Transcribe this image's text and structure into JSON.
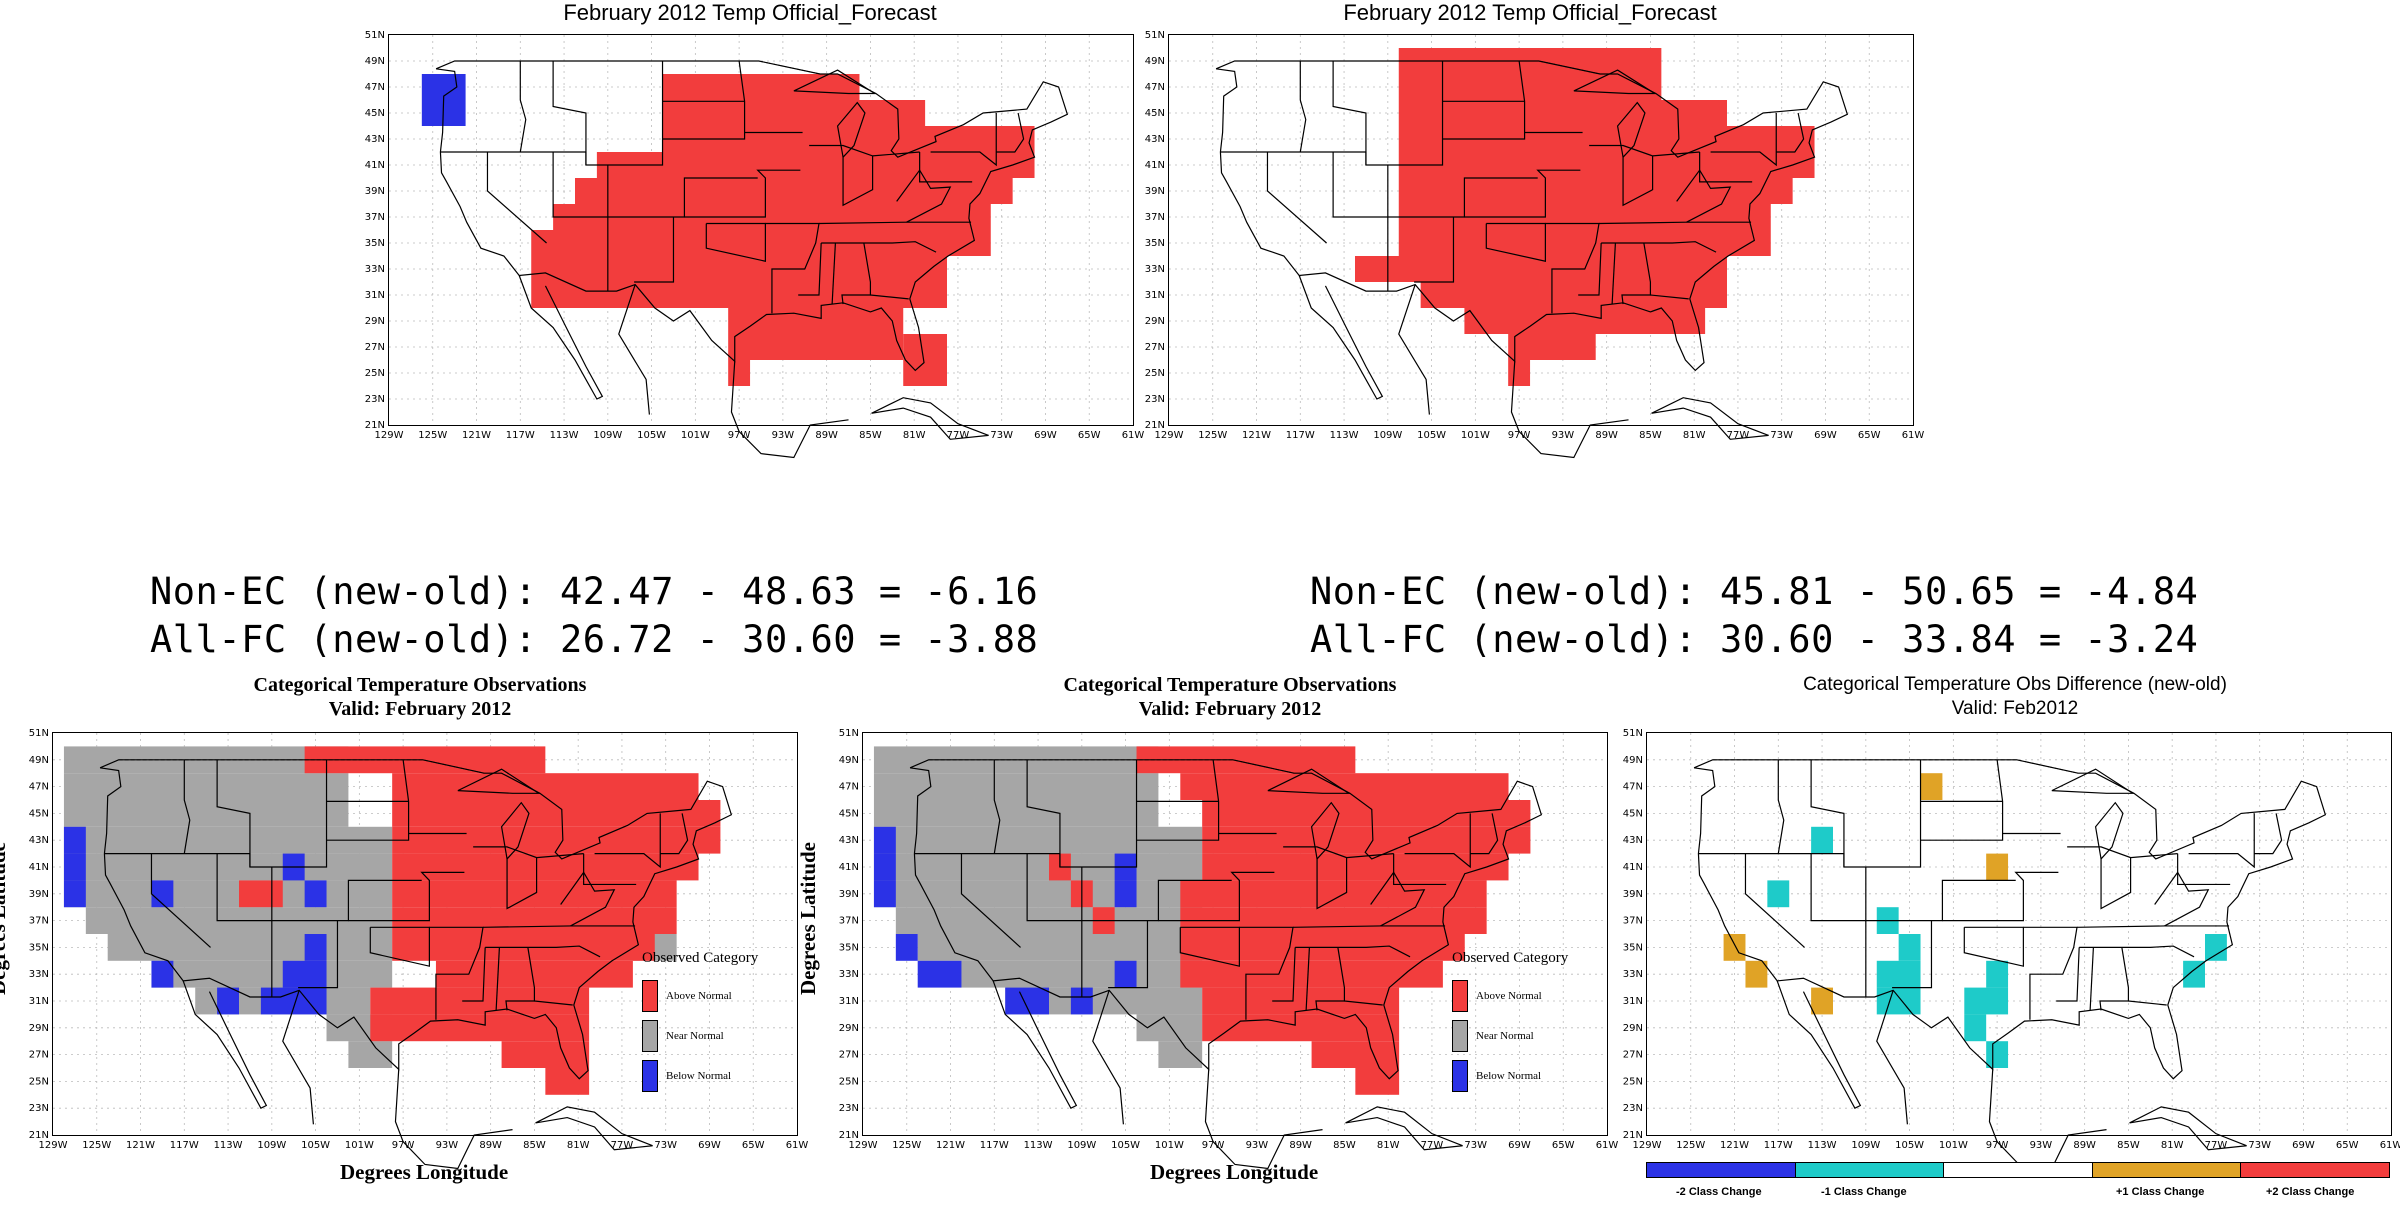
{
  "colors": {
    "above": "#f23d3d",
    "near": "#a6a6a6",
    "below": "#2b32e6",
    "minus2": "#2b32e6",
    "minus1": "#1ecbc9",
    "zero": "#ffffff",
    "plus1": "#e0a326",
    "plus2": "#f23d3d"
  },
  "axes": {
    "lon_ticks": [
      "129W",
      "125W",
      "121W",
      "117W",
      "113W",
      "109W",
      "105W",
      "101W",
      "97W",
      "93W",
      "89W",
      "85W",
      "81W",
      "77W",
      "73W",
      "69W",
      "65W",
      "61W"
    ],
    "lat_ticks": [
      "21N",
      "23N",
      "25N",
      "27N",
      "29N",
      "31N",
      "33N",
      "35N",
      "37N",
      "39N",
      "41N",
      "43N",
      "45N",
      "47N",
      "49N",
      "51N"
    ],
    "lon_range": [
      -129,
      -61
    ],
    "lat_range": [
      21,
      51
    ]
  },
  "panels": [
    {
      "id": "forecast-old",
      "title": "February 2012 Temp Official_Forecast",
      "subtitle": "",
      "show_axis_titles": false,
      "cells": [
        {
          "row": [
            47,
            49,
            45
          ],
          "lon": [
            -125,
            -122
          ],
          "cls": "below"
        },
        {
          "row": [
            47,
            47,
            45
          ],
          "lon": [
            -125,
            -122
          ],
          "cls": "below"
        },
        {
          "row": [
            45,
            45,
            45
          ],
          "lon": [
            -125,
            -122
          ],
          "cls": "below"
        }
      ]
    },
    {
      "id": "forecast-new",
      "title": "February 2012 Temp Official_Forecast",
      "subtitle": "",
      "show_axis_titles": false
    },
    {
      "id": "obs-old",
      "title": "Categorical Temperature Observations",
      "subtitle": "Valid: February 2012",
      "show_axis_titles": true
    },
    {
      "id": "obs-new",
      "title": "Categorical Temperature Observations",
      "subtitle": "Valid: February 2012",
      "show_axis_titles": true
    },
    {
      "id": "obs-diff",
      "title": "Categorical Temperature Obs Difference (new-old)",
      "subtitle": "Valid: Feb2012",
      "show_axis_titles": false
    }
  ],
  "scores": {
    "left": {
      "non_ec": "Non-EC (new-old): 42.47 - 48.63 = -6.16",
      "all_fc": "All-FC (new-old): 26.72 - 30.60 = -3.88"
    },
    "right": {
      "non_ec": "Non-EC (new-old): 45.81 - 50.65 = -4.84",
      "all_fc": "All-FC (new-old): 30.60 - 33.84 = -3.24"
    }
  },
  "axis_titles": {
    "y": "Degrees Latitude",
    "x": "Degrees Longitude"
  },
  "obs_legend": {
    "title": "Observed Category",
    "items": [
      {
        "label": "Above Normal",
        "color_key": "above"
      },
      {
        "label": "Near Normal",
        "color_key": "near"
      },
      {
        "label": "Below Normal",
        "color_key": "below"
      }
    ]
  },
  "diff_colorbar": {
    "labels": [
      "-2 Class Change",
      "-1 Class Change",
      "+1 Class Change",
      "+2 Class Change"
    ]
  },
  "grids": {
    "forecast_old": {
      "above": [
        [
          -103,
          -87,
          47
        ],
        [
          -103,
          -81,
          45
        ],
        [
          -103,
          -71,
          43
        ],
        [
          -109,
          -71,
          41
        ],
        [
          -111,
          -73,
          39
        ],
        [
          -113,
          -75,
          37
        ],
        [
          -115,
          -75,
          35
        ],
        [
          -115,
          -79,
          33
        ],
        [
          -115,
          -79,
          31
        ],
        [
          -97,
          -83,
          29
        ],
        [
          -97,
          -83,
          27
        ],
        [
          -97,
          -97,
          25
        ],
        [
          -81,
          -79,
          25
        ],
        [
          -81,
          -79,
          27
        ]
      ],
      "below": [
        [
          -125,
          -123,
          47
        ],
        [
          -125,
          -123,
          45
        ]
      ]
    },
    "forecast_new": {
      "above": [
        [
          -107,
          -85,
          49
        ],
        [
          -107,
          -85,
          47
        ],
        [
          -107,
          -79,
          45
        ],
        [
          -107,
          -71,
          43
        ],
        [
          -107,
          -71,
          41
        ],
        [
          -107,
          -73,
          39
        ],
        [
          -107,
          -75,
          37
        ],
        [
          -107,
          -75,
          35
        ],
        [
          -111,
          -79,
          33
        ],
        [
          -105,
          -79,
          31
        ],
        [
          -101,
          -81,
          29
        ],
        [
          -97,
          -91,
          27
        ],
        [
          -97,
          -97,
          25
        ]
      ],
      "below": []
    },
    "obs_old": {
      "grey": [
        [
          -127,
          -103,
          49
        ],
        [
          -127,
          -103,
          47
        ],
        [
          -127,
          -103,
          45
        ],
        [
          -127,
          -99,
          43
        ],
        [
          -127,
          -99,
          41
        ],
        [
          -127,
          -99,
          39
        ],
        [
          -125,
          -99,
          37
        ],
        [
          -123,
          -99,
          35
        ],
        [
          -119,
          -99,
          33
        ],
        [
          -115,
          -101,
          31
        ],
        [
          -103,
          -99,
          29
        ],
        [
          -101,
          -99,
          27
        ],
        [
          -75,
          -73,
          35
        ]
      ],
      "above": [
        [
          -105,
          -85,
          49
        ],
        [
          -97,
          -71,
          47
        ],
        [
          -97,
          -69,
          45
        ],
        [
          -97,
          -69,
          43
        ],
        [
          -97,
          -71,
          41
        ],
        [
          -97,
          -73,
          39
        ],
        [
          -97,
          -73,
          37
        ],
        [
          -97,
          -75,
          35
        ],
        [
          -93,
          -77,
          33
        ],
        [
          -99,
          -81,
          31
        ],
        [
          -99,
          -81,
          29
        ],
        [
          -87,
          -81,
          27
        ],
        [
          -83,
          -81,
          25
        ],
        [
          -111,
          -109,
          39
        ]
      ],
      "below": [
        [
          -127,
          -127,
          43
        ],
        [
          -127,
          -127,
          41
        ],
        [
          -127,
          -127,
          39
        ],
        [
          -119,
          -119,
          39
        ],
        [
          -107,
          -107,
          41
        ],
        [
          -105,
          -105,
          39
        ],
        [
          -105,
          -105,
          35
        ],
        [
          -107,
          -105,
          33
        ],
        [
          -109,
          -105,
          31
        ],
        [
          -119,
          -119,
          33
        ],
        [
          -113,
          -113,
          31
        ]
      ]
    },
    "obs_new": {
      "grey": [
        [
          -127,
          -103,
          49
        ],
        [
          -127,
          -103,
          47
        ],
        [
          -127,
          -103,
          45
        ],
        [
          -127,
          -99,
          43
        ],
        [
          -127,
          -99,
          41
        ],
        [
          -127,
          -99,
          39
        ],
        [
          -125,
          -99,
          37
        ],
        [
          -123,
          -99,
          35
        ],
        [
          -119,
          -99,
          33
        ],
        [
          -115,
          -99,
          31
        ],
        [
          -103,
          -99,
          29
        ],
        [
          -101,
          -99,
          27
        ]
      ],
      "above": [
        [
          -103,
          -85,
          49
        ],
        [
          -99,
          -71,
          47
        ],
        [
          -97,
          -69,
          45
        ],
        [
          -97,
          -69,
          43
        ],
        [
          -97,
          -71,
          41
        ],
        [
          -99,
          -73,
          39
        ],
        [
          -99,
          -73,
          37
        ],
        [
          -99,
          -75,
          35
        ],
        [
          -99,
          -77,
          33
        ],
        [
          -97,
          -81,
          31
        ],
        [
          -97,
          -81,
          29
        ],
        [
          -87,
          -81,
          27
        ],
        [
          -83,
          -81,
          25
        ],
        [
          -111,
          -111,
          41
        ],
        [
          -109,
          -109,
          39
        ],
        [
          -107,
          -107,
          37
        ]
      ],
      "below": [
        [
          -127,
          -127,
          43
        ],
        [
          -127,
          -127,
          41
        ],
        [
          -127,
          -127,
          39
        ],
        [
          -125,
          -125,
          35
        ],
        [
          -123,
          -121,
          33
        ],
        [
          -115,
          -113,
          31
        ],
        [
          -109,
          -109,
          31
        ],
        [
          -105,
          -105,
          41
        ],
        [
          -105,
          -105,
          39
        ],
        [
          -105,
          -105,
          33
        ]
      ]
    },
    "obs_diff": {
      "minus1": [
        [
          -113,
          -113,
          43
        ],
        [
          -117,
          -117,
          39
        ],
        [
          -107,
          -107,
          37
        ],
        [
          -105,
          -105,
          35
        ],
        [
          -107,
          -105,
          33
        ],
        [
          -107,
          -105,
          31
        ],
        [
          -97,
          -97,
          33
        ],
        [
          -99,
          -97,
          31
        ],
        [
          -99,
          -99,
          29
        ],
        [
          -97,
          -97,
          27
        ],
        [
          -77,
          -77,
          35
        ],
        [
          -79,
          -79,
          33
        ]
      ],
      "plus1": [
        [
          -103,
          -103,
          47
        ],
        [
          -121,
          -121,
          35
        ],
        [
          -119,
          -119,
          33
        ],
        [
          -113,
          -113,
          31
        ],
        [
          -97,
          -97,
          41
        ]
      ]
    }
  }
}
